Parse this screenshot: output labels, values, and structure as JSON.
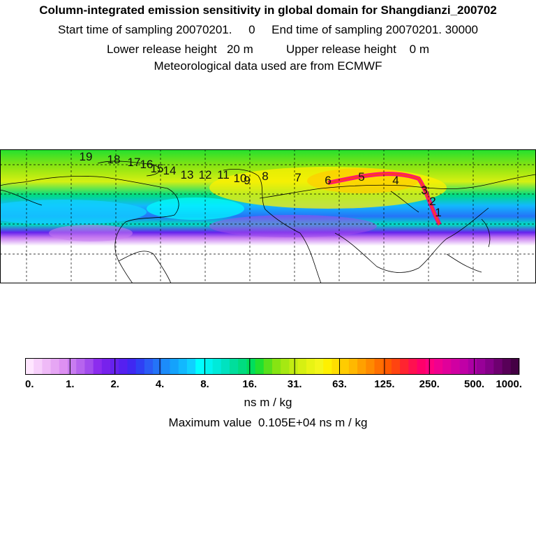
{
  "header": {
    "title": "Column-integrated emission sensitivity in global domain for Shangdianzi_200702",
    "sampling": "Start time of sampling 20070201.     0     End time of sampling 20070201. 30000",
    "release_height": "Lower release height   20 m          Upper release height    0 m",
    "met_data": "Meteorological data used are from ECMWF"
  },
  "colorbar": {
    "units": "ns m / kg",
    "tick_labels": [
      "0.",
      "1.",
      "2.",
      "4.",
      "8.",
      "16.",
      "31.",
      "63.",
      "125.",
      "250.",
      "500.",
      "1000."
    ],
    "colors": [
      "#ffe6ff",
      "#f7d0fb",
      "#efbaf7",
      "#e6a6f4",
      "#dd90f2",
      "#c87cf0",
      "#b664ee",
      "#a24ced",
      "#8c2cee",
      "#7722ec",
      "#6622ee",
      "#5520f0",
      "#4028f2",
      "#2f40f4",
      "#2b5cf6",
      "#2474f8",
      "#1c8cfa",
      "#14a2fc",
      "#12b8fe",
      "#10d0ff",
      "#00ffff",
      "#00f4f0",
      "#00eada",
      "#00e2c0",
      "#00de9c",
      "#00dc80",
      "#00de5c",
      "#20e030",
      "#58e01c",
      "#86e412",
      "#a6e812",
      "#c2ec12",
      "#d6f012",
      "#e8f414",
      "#f4f61a",
      "#fff000",
      "#ffde00",
      "#ffcc00",
      "#ffb800",
      "#ffa000",
      "#ff8a00",
      "#ff7000",
      "#ff5a00",
      "#ff4410",
      "#ff2430",
      "#ff1050",
      "#ff006a",
      "#ff0080",
      "#f00090",
      "#e0009a",
      "#d000a2",
      "#c000a6",
      "#ac00a4",
      "#980098",
      "#840088",
      "#6e0070",
      "#580058",
      "#440044"
    ]
  },
  "max_value": "Maximum value  0.105E+04 ns m / kg",
  "map": {
    "trajectory_labels": [
      "1",
      "2",
      "3",
      "4",
      "5",
      "6",
      "7",
      "8",
      "9",
      "10",
      "11",
      "12",
      "13",
      "14",
      "15",
      "16",
      "17",
      "18",
      "19"
    ]
  }
}
